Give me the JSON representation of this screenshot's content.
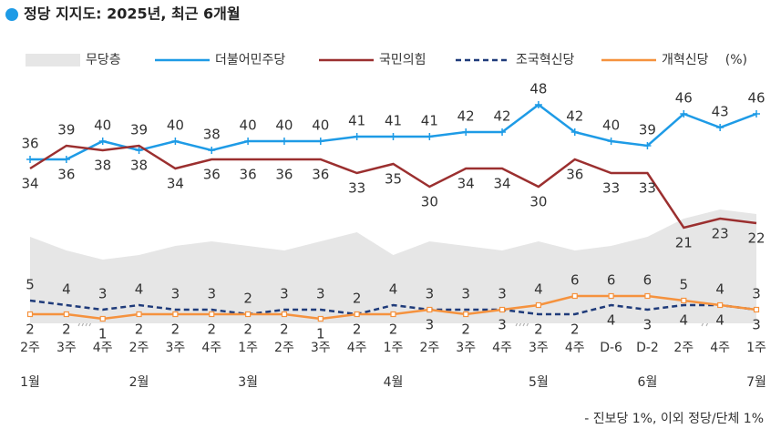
{
  "chart_data": {
    "type": "line",
    "title": "정당 지지도: 2025년, 최근 6개월",
    "unit": "(%)",
    "note": "- 진보당 1%, 이외 정당/단체 1%",
    "categories": [
      "2주",
      "3주",
      "4주",
      "2주",
      "3주",
      "4주",
      "1주",
      "2주",
      "3주",
      "4주",
      "1주",
      "2주",
      "3주",
      "4주",
      "3주",
      "4주",
      "D-6",
      "D-2",
      "2주",
      "4주",
      "1주"
    ],
    "months": [
      {
        "index": 0,
        "label": "1월"
      },
      {
        "index": 3,
        "label": "2월"
      },
      {
        "index": 6,
        "label": "3월"
      },
      {
        "index": 10,
        "label": "4월"
      },
      {
        "index": 14,
        "label": "5월"
      },
      {
        "index": 17,
        "label": "6월"
      },
      {
        "index": 20,
        "label": "7월"
      }
    ],
    "ylim": [
      0,
      50
    ],
    "series": [
      {
        "name": "무당층",
        "color": "#e6e6e6",
        "style": "area",
        "values": [
          19,
          16,
          14,
          15,
          17,
          18,
          17,
          16,
          18,
          20,
          15,
          18,
          17,
          16,
          18,
          16,
          17,
          19,
          23,
          25,
          24
        ]
      },
      {
        "name": "더불어민주당",
        "color": "#1e9be6",
        "style": "solid",
        "labels": true,
        "values": [
          36,
          36,
          40,
          38,
          40,
          38,
          40,
          40,
          40,
          41,
          41,
          41,
          42,
          42,
          48,
          42,
          40,
          39,
          46,
          43,
          46
        ]
      },
      {
        "name": "국민의힘",
        "color": "#9b2f2f",
        "style": "solid",
        "labels": true,
        "values": [
          34,
          39,
          38,
          39,
          34,
          36,
          36,
          36,
          36,
          33,
          35,
          30,
          34,
          34,
          30,
          36,
          33,
          33,
          21,
          23,
          22
        ]
      },
      {
        "name": "조국혁신당",
        "color": "#1f3b7a",
        "style": "dashed",
        "labels": true,
        "values": [
          5,
          4,
          3,
          4,
          3,
          3,
          2,
          3,
          3,
          2,
          4,
          3,
          3,
          3,
          2,
          2,
          4,
          3,
          4,
          4,
          3
        ]
      },
      {
        "name": "개혁신당",
        "color": "#f5923e",
        "style": "solid",
        "labels": true,
        "values": [
          2,
          2,
          1,
          2,
          2,
          2,
          2,
          2,
          1,
          2,
          2,
          3,
          2,
          3,
          4,
          6,
          6,
          6,
          5,
          4,
          3
        ]
      }
    ]
  }
}
